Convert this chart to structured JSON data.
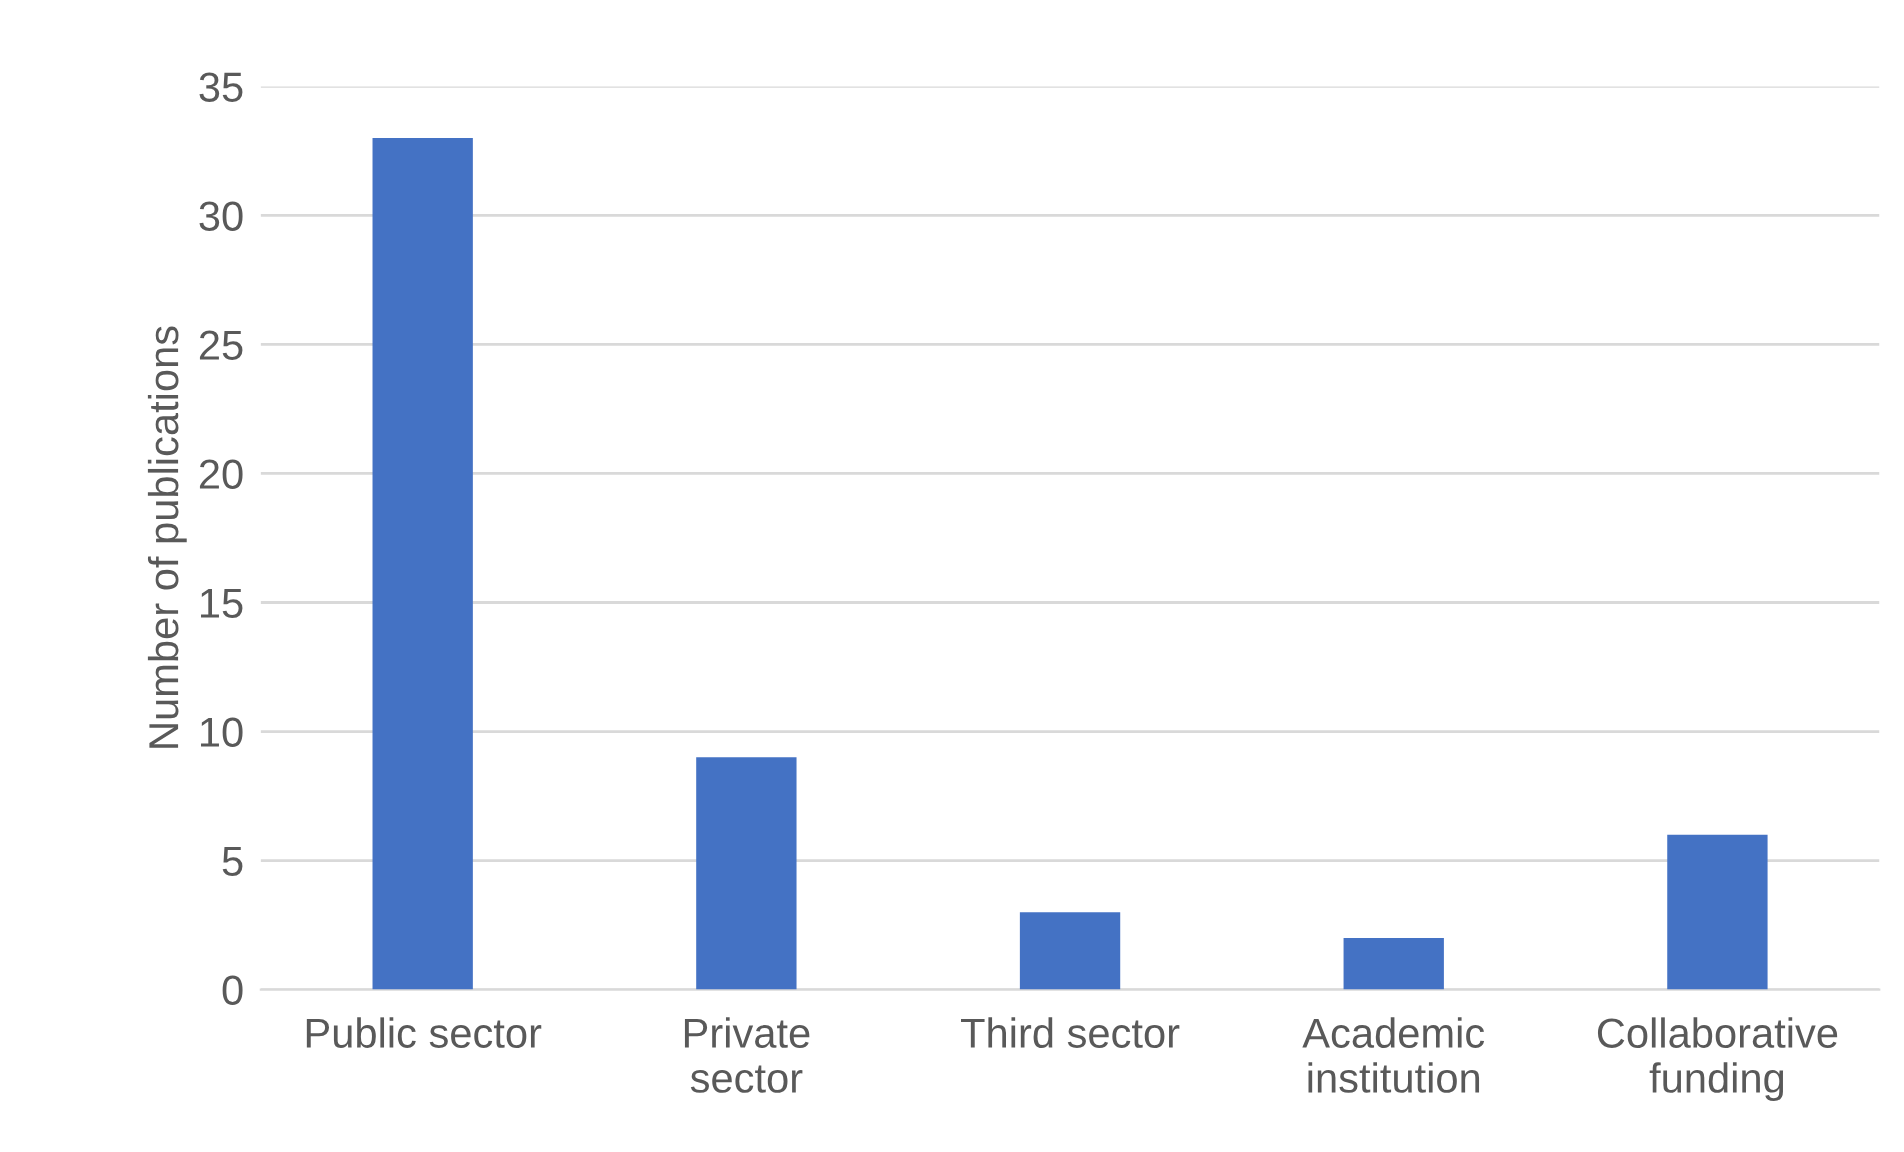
{
  "chart_data": {
    "type": "bar",
    "ylabel": "Number of publications",
    "categories": [
      "Public sector",
      "Private\nsector",
      "Third sector",
      "Academic\ninstitution",
      "Collaborative\nfunding"
    ],
    "values": [
      33,
      9,
      3,
      2,
      6
    ],
    "color": "#4472c4",
    "ylim": [
      0,
      35
    ],
    "yticks": [
      0,
      5,
      10,
      15,
      20,
      25,
      30,
      35
    ],
    "grid": "y"
  }
}
